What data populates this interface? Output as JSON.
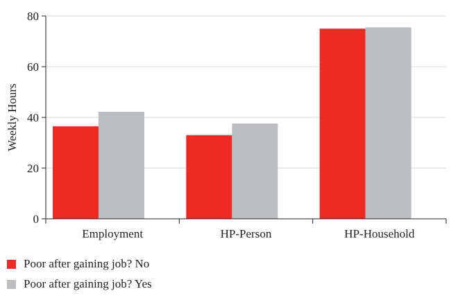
{
  "chart_data": {
    "type": "bar",
    "title": "",
    "xlabel": "",
    "ylabel": "Weekly Hours",
    "ylim": [
      0,
      80
    ],
    "yticks": [
      0,
      20,
      40,
      60,
      80
    ],
    "grid": true,
    "legend_position": "bottom-left",
    "categories": [
      "Employment",
      "HP-Person",
      "HP-Household"
    ],
    "series": [
      {
        "name": "Poor after gaining job? No",
        "color": "#ee2a24",
        "values": [
          36.5,
          33,
          75
        ]
      },
      {
        "name": "Poor after gaining job? Yes",
        "color": "#bcbdc0",
        "values": [
          42.2,
          37.6,
          75.5
        ]
      }
    ]
  }
}
